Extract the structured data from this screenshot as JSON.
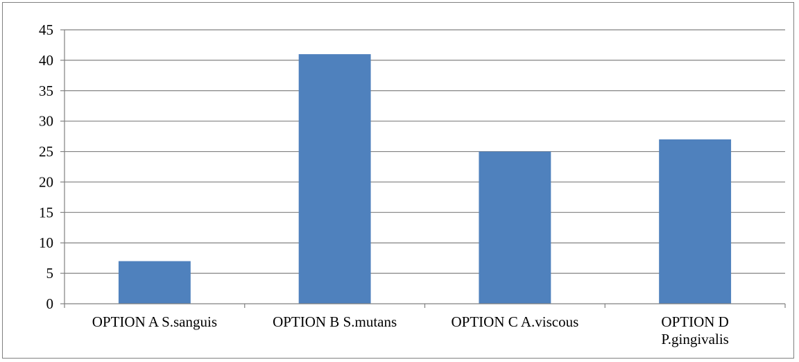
{
  "chart_data": {
    "type": "bar",
    "categories": [
      [
        "OPTION A S.sanguis"
      ],
      [
        "OPTION B S.mutans"
      ],
      [
        "OPTION C A.viscous"
      ],
      [
        "OPTION D",
        "P.gingivalis"
      ]
    ],
    "values": [
      7,
      41,
      25,
      27
    ],
    "ylim": [
      0,
      45
    ],
    "yticks": [
      0,
      5,
      10,
      15,
      20,
      25,
      30,
      35,
      40,
      45
    ],
    "title": "",
    "xlabel": "",
    "ylabel": "",
    "grid": true,
    "legend": "none",
    "colors": {
      "bar": "#4f81bd",
      "gridline": "#808080",
      "axis": "#808080",
      "border": "#7f7f7f"
    }
  }
}
